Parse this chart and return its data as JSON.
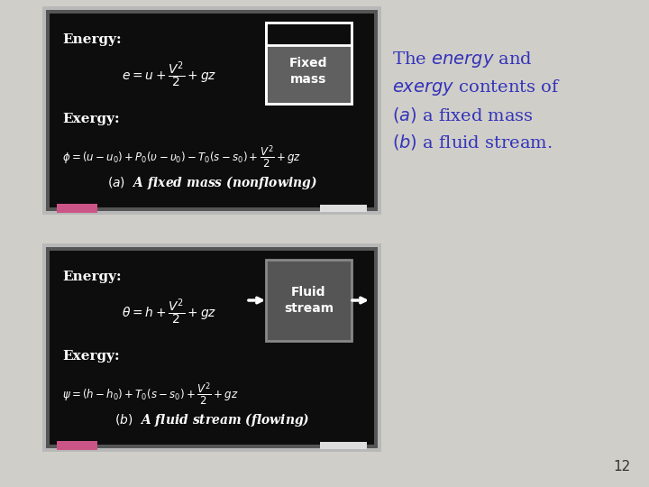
{
  "bg_color": "#d0cec8",
  "board_color": "#0d0d0d",
  "text_color": "#ffffff",
  "caption_color": "#3333bb",
  "page_num": "12",
  "board1": {
    "energy_label": "Energy:",
    "energy_eq": "$e = u + \\dfrac{V^2}{2} + gz$",
    "exergy_label": "Exergy:",
    "exergy_eq": "$\\phi = (u - u_0) + P_0(\\upsilon - \\upsilon_0) - T_0(s - s_0) + \\dfrac{V^2}{2} + gz$",
    "caption": "$(a)$  A fixed mass (nonflowing)",
    "box_label": "Fixed\nmass",
    "eraser_color": "#cc5588",
    "chalk_color": "#dddddd"
  },
  "board2": {
    "energy_label": "Energy:",
    "energy_eq": "$\\theta = h + \\dfrac{V^2}{2} + gz$",
    "exergy_label": "Exergy:",
    "exergy_eq": "$\\psi = (h - h_0) + T_0(s - s_0) + \\dfrac{V^2}{2} + gz$",
    "caption": "$(b)$  A fluid stream (flowing)",
    "box_label": "Fluid\nstream",
    "eraser_color": "#cc5588",
    "chalk_color": "#dddddd"
  },
  "caption_text": "The $\\it{energy}$ and\n$\\it{exergy}$ contents of\n$(a)$ a fixed mass\n$(b)$ a fluid stream."
}
